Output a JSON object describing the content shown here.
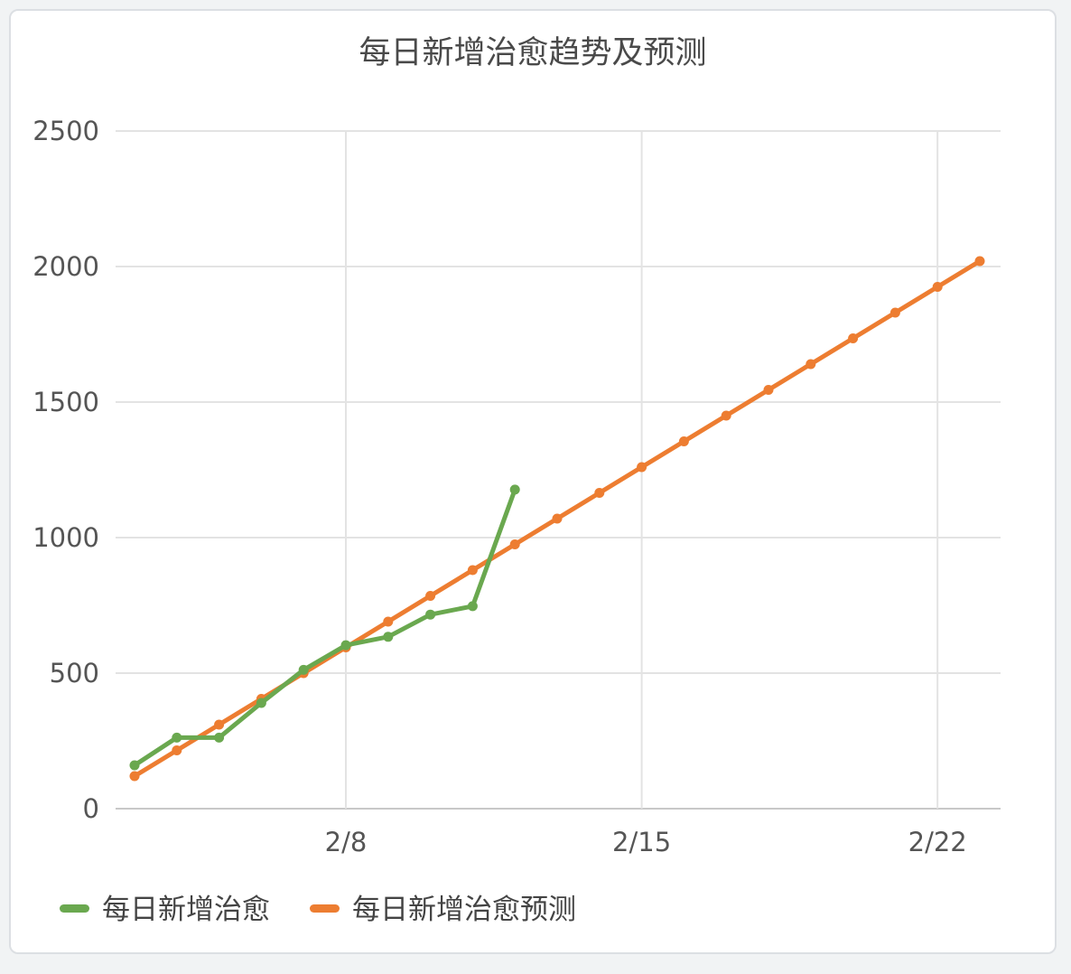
{
  "chart_data": {
    "type": "line",
    "title": "每日新增治愈趋势及预测",
    "xlabel": "",
    "ylabel": "",
    "x_start": "2/3",
    "x_ticks": [
      {
        "label": "2/8",
        "day": 5
      },
      {
        "label": "2/15",
        "day": 12
      },
      {
        "label": "2/22",
        "day": 19
      }
    ],
    "xlim": [
      "2/2.5",
      "2/23.5"
    ],
    "ylim": [
      0,
      2500
    ],
    "y_ticks": [
      0,
      500,
      1000,
      1500,
      2000,
      2500
    ],
    "grid": true,
    "legend_position": "bottom-left",
    "series": [
      {
        "name": "每日新增治愈",
        "color": "#6aa84f",
        "x": [
          "2/3",
          "2/4",
          "2/5",
          "2/6",
          "2/7",
          "2/8",
          "2/9",
          "2/10",
          "2/11",
          "2/12"
        ],
        "values": [
          160,
          262,
          262,
          390,
          512,
          603,
          634,
          716,
          747,
          1177
        ]
      },
      {
        "name": "每日新增治愈预测",
        "color": "#ed7d31",
        "x": [
          "2/3",
          "2/4",
          "2/5",
          "2/6",
          "2/7",
          "2/8",
          "2/9",
          "2/10",
          "2/11",
          "2/12",
          "2/13",
          "2/14",
          "2/15",
          "2/16",
          "2/17",
          "2/18",
          "2/19",
          "2/20",
          "2/21",
          "2/22",
          "2/23"
        ],
        "values": [
          120,
          215,
          310,
          405,
          500,
          595,
          690,
          785,
          880,
          975,
          1070,
          1165,
          1260,
          1355,
          1450,
          1545,
          1640,
          1735,
          1830,
          1925,
          2020
        ]
      }
    ]
  }
}
